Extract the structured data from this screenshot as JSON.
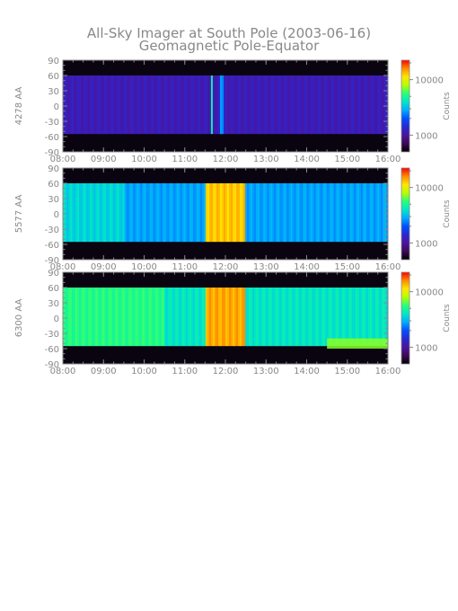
{
  "title": "All-Sky Imager at South Pole (2003-06-16)",
  "subtitle": "Geomagnetic Pole-Equator",
  "colorbar_label": "Counts",
  "colorbar_ticks": [
    "10000",
    "1000"
  ],
  "y_ticks": [
    "90",
    "60",
    "30",
    "0",
    "-30",
    "-60",
    "-90"
  ],
  "x_ticks": [
    "08:00",
    "09:00",
    "10:00",
    "11:00",
    "12:00",
    "13:00",
    "14:00",
    "15:00",
    "16:00"
  ],
  "colors": {
    "text": "#888888",
    "background": "#ffffff",
    "night_band": "#0a0410",
    "colormap": [
      "#000000",
      "#3c0a55",
      "#4b14a0",
      "#2828d2",
      "#0050ff",
      "#00aaff",
      "#00e6c8",
      "#28ff78",
      "#b4ff00",
      "#ffe600",
      "#ff8c00",
      "#ff0000"
    ]
  },
  "chart_data": [
    {
      "type": "heatmap",
      "ylabel": "4278 AA",
      "xlim": [
        "08:00",
        "16:00"
      ],
      "ylim": [
        -90,
        90
      ],
      "colorbar": {
        "label": "Counts",
        "ticks": [
          1000,
          10000
        ],
        "scale": "log"
      },
      "data_band_lat": [
        -55,
        60
      ],
      "background_level": 0.22,
      "features": [
        {
          "time": "11:40",
          "lat_range": [
            -55,
            60
          ],
          "level": 0.55,
          "kind": "vertical streak"
        },
        {
          "time": "11:55",
          "lat_range": [
            -55,
            60
          ],
          "level": 0.45,
          "kind": "vertical streak"
        }
      ]
    },
    {
      "type": "heatmap",
      "ylabel": "5577 AA",
      "xlim": [
        "08:00",
        "16:00"
      ],
      "ylim": [
        -90,
        90
      ],
      "colorbar": {
        "label": "Counts",
        "ticks": [
          1000,
          10000
        ],
        "scale": "log"
      },
      "data_band_lat": [
        -55,
        60
      ],
      "background_level": 0.45,
      "features": [
        {
          "time_range": [
            "08:00",
            "09:30"
          ],
          "lat_range": [
            -55,
            60
          ],
          "level": 0.52,
          "kind": "diffuse aurora"
        },
        {
          "time_range": [
            "11:30",
            "12:30"
          ],
          "lat_range": [
            -55,
            60
          ],
          "level": 0.85,
          "kind": "bright auroral band"
        }
      ]
    },
    {
      "type": "heatmap",
      "ylabel": "6300 AA",
      "xlim": [
        "08:00",
        "16:00"
      ],
      "ylim": [
        -90,
        90
      ],
      "colorbar": {
        "label": "Counts",
        "ticks": [
          1000,
          10000
        ],
        "scale": "log"
      },
      "data_band_lat": [
        -55,
        60
      ],
      "background_level": 0.55,
      "features": [
        {
          "time_range": [
            "08:00",
            "10:30"
          ],
          "lat_range": [
            -55,
            60
          ],
          "level": 0.62,
          "kind": "broad emission"
        },
        {
          "time_range": [
            "11:30",
            "12:30"
          ],
          "lat_range": [
            -55,
            60
          ],
          "level": 0.88,
          "kind": "bright auroral band"
        },
        {
          "time_range": [
            "14:30",
            "16:00"
          ],
          "lat_range": [
            -60,
            -40
          ],
          "level": 0.7,
          "kind": "equatorward glow"
        }
      ]
    }
  ]
}
